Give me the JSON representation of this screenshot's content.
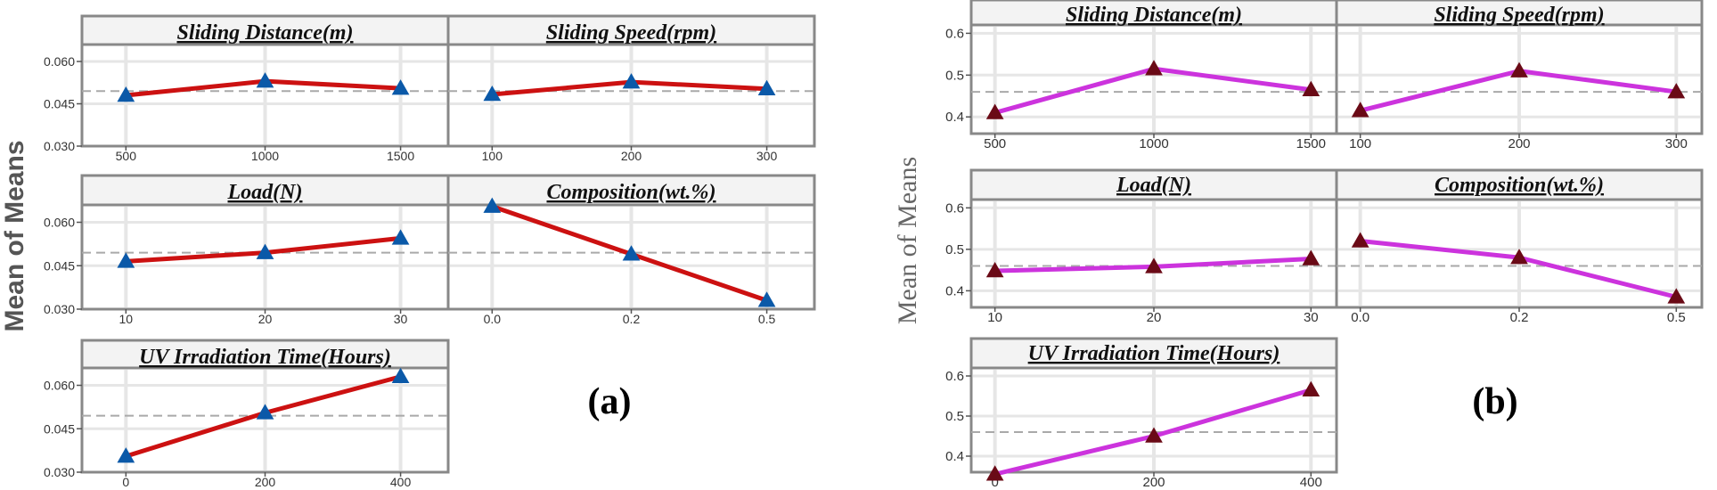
{
  "figure": {
    "panel_labels": [
      "(a)",
      "(b)"
    ],
    "ylabels": [
      "Mean of Means",
      "Mean of Means"
    ],
    "line_colors": [
      "#cc1111",
      "#cc33dd"
    ],
    "marker_colors": [
      "#0b59a8",
      "#6a0a16"
    ],
    "mean_line_color": "#a9a9a9"
  },
  "chart_data": [
    {
      "type": "line",
      "panel": "(a)",
      "title": "Sliding Distance(m)",
      "ylabel": "Mean of Means",
      "categories": [
        "500",
        "1000",
        "1500"
      ],
      "values": [
        0.048,
        0.053,
        0.0505
      ],
      "ylim": [
        0.03,
        0.066
      ],
      "yticks": [
        "0.030",
        "0.045",
        "0.060"
      ],
      "mean": 0.0495,
      "grid": true
    },
    {
      "type": "line",
      "panel": "(a)",
      "title": "Sliding Speed(rpm)",
      "ylabel": "Mean of Means",
      "categories": [
        "100",
        "200",
        "300"
      ],
      "values": [
        0.0483,
        0.0527,
        0.0503
      ],
      "ylim": [
        0.03,
        0.066
      ],
      "yticks": [
        "0.030",
        "0.045",
        "0.060"
      ],
      "mean": 0.0495,
      "grid": true
    },
    {
      "type": "line",
      "panel": "(a)",
      "title": "Load(N)",
      "ylabel": "Mean of Means",
      "categories": [
        "10",
        "20",
        "30"
      ],
      "values": [
        0.0465,
        0.0495,
        0.0545
      ],
      "ylim": [
        0.03,
        0.066
      ],
      "yticks": [
        "0.030",
        "0.045",
        "0.060"
      ],
      "mean": 0.0495,
      "grid": true
    },
    {
      "type": "line",
      "panel": "(a)",
      "title": "Composition(wt.%)",
      "ylabel": "Mean of Means",
      "categories": [
        "0.0",
        "0.2",
        "0.5"
      ],
      "values": [
        0.0655,
        0.049,
        0.033
      ],
      "ylim": [
        0.03,
        0.066
      ],
      "yticks": [
        "0.030",
        "0.045",
        "0.060"
      ],
      "mean": 0.0495,
      "grid": true
    },
    {
      "type": "line",
      "panel": "(a)",
      "title": "UV Irradiation Time(Hours)",
      "ylabel": "Mean of Means",
      "categories": [
        "0",
        "200",
        "400"
      ],
      "values": [
        0.0355,
        0.0505,
        0.063
      ],
      "ylim": [
        0.03,
        0.066
      ],
      "yticks": [
        "0.030",
        "0.045",
        "0.060"
      ],
      "mean": 0.0495,
      "grid": true
    },
    {
      "type": "line",
      "panel": "(b)",
      "title": "Sliding Distance(m)",
      "ylabel": "Mean of Means",
      "categories": [
        "500",
        "1000",
        "1500"
      ],
      "values": [
        0.41,
        0.515,
        0.465
      ],
      "ylim": [
        0.36,
        0.62
      ],
      "yticks": [
        "0.4",
        "0.5",
        "0.6"
      ],
      "mean": 0.46,
      "grid": true
    },
    {
      "type": "line",
      "panel": "(b)",
      "title": "Sliding Speed(rpm)",
      "ylabel": "Mean of Means",
      "categories": [
        "100",
        "200",
        "300"
      ],
      "values": [
        0.415,
        0.51,
        0.46
      ],
      "ylim": [
        0.36,
        0.62
      ],
      "yticks": [
        "0.4",
        "0.5",
        "0.6"
      ],
      "mean": 0.46,
      "grid": true
    },
    {
      "type": "line",
      "panel": "(b)",
      "title": "Load(N)",
      "ylabel": "Mean of Means",
      "categories": [
        "10",
        "20",
        "30"
      ],
      "values": [
        0.448,
        0.458,
        0.477
      ],
      "ylim": [
        0.36,
        0.62
      ],
      "yticks": [
        "0.4",
        "0.5",
        "0.6"
      ],
      "mean": 0.46,
      "grid": true
    },
    {
      "type": "line",
      "panel": "(b)",
      "title": "Composition(wt.%)",
      "ylabel": "Mean of Means",
      "categories": [
        "0.0",
        "0.2",
        "0.5"
      ],
      "values": [
        0.52,
        0.48,
        0.385
      ],
      "ylim": [
        0.36,
        0.62
      ],
      "yticks": [
        "0.4",
        "0.5",
        "0.6"
      ],
      "mean": 0.46,
      "grid": true
    },
    {
      "type": "line",
      "panel": "(b)",
      "title": "UV Irradiation Time(Hours)",
      "ylabel": "Mean of Means",
      "categories": [
        "0",
        "200",
        "400"
      ],
      "values": [
        0.355,
        0.45,
        0.565
      ],
      "ylim": [
        0.36,
        0.62
      ],
      "yticks": [
        "0.4",
        "0.5",
        "0.6"
      ],
      "mean": 0.46,
      "grid": true
    }
  ]
}
